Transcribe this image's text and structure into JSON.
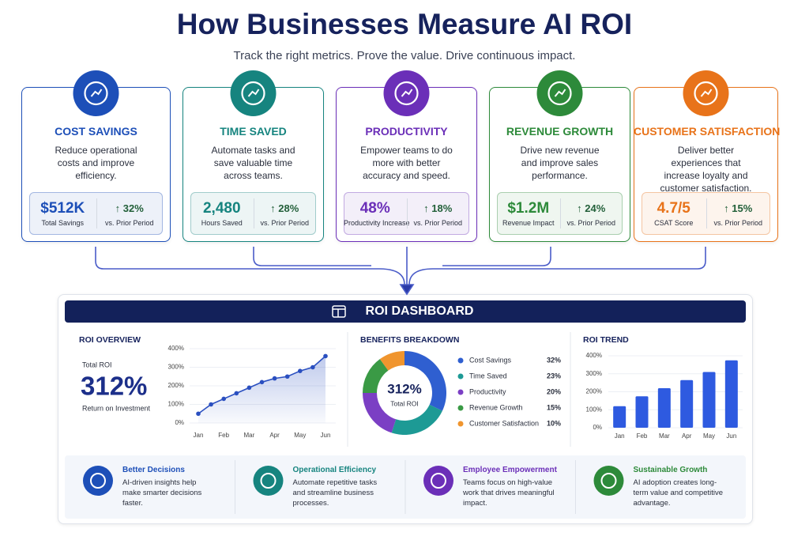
{
  "header": {
    "title": "How Businesses Measure AI ROI",
    "subtitle": "Track the right metrics. Prove the value. Drive continuous impact."
  },
  "cards": [
    {
      "title": "COST SAVINGS",
      "color": "#1d4fb8",
      "description": "Reduce operational costs and improve efficiency.",
      "metric": "$512K",
      "metric_label": "Total Savings",
      "change": "↑ 32%",
      "change_label": "vs. Prior Period"
    },
    {
      "title": "TIME SAVED",
      "color": "#16847f",
      "description": "Automate tasks and save valuable time across teams.",
      "metric": "2,480",
      "metric_label": "Hours Saved",
      "change": "↑ 28%",
      "change_label": "vs. Prior Period"
    },
    {
      "title": "PRODUCTIVITY",
      "color": "#6b2fb8",
      "description": "Empower teams to do more with better accuracy and speed.",
      "metric": "48%",
      "metric_label": "Productivity Increase",
      "change": "↑ 18%",
      "change_label": "vs. Prior Period"
    },
    {
      "title": "REVENUE GROWTH",
      "color": "#2d8a3a",
      "description": "Drive new revenue and improve sales performance.",
      "metric": "$1.2M",
      "metric_label": "Revenue Impact",
      "change": "↑ 24%",
      "change_label": "vs. Prior Period"
    },
    {
      "title": "CUSTOMER SATISFACTION",
      "color": "#e8731a",
      "description": "Deliver better experiences that increase loyalty and customer satisfaction.",
      "metric": "4.7/5",
      "metric_label": "CSAT Score",
      "change": "↑ 15%",
      "change_label": "vs. Prior Period"
    }
  ],
  "dashboard": {
    "title": "ROI DASHBOARD"
  },
  "chart_data": [
    {
      "type": "line",
      "title": "ROI OVERVIEW",
      "kpi_label": "Total ROI",
      "kpi_value": "312%",
      "kpi_caption": "Return on Investment",
      "categories": [
        "Jan",
        null,
        "Feb",
        null,
        "Mar",
        null,
        "Apr",
        null,
        "May",
        null,
        "Jun"
      ],
      "values": [
        50,
        100,
        130,
        160,
        190,
        220,
        240,
        250,
        280,
        300,
        360
      ],
      "color": "#2a4fc0",
      "ylim": [
        0,
        400
      ],
      "yticks": [
        {
          "value": 0,
          "label": "0%"
        },
        {
          "value": 100,
          "label": "100%"
        },
        {
          "value": 200,
          "label": "200%"
        },
        {
          "value": 300,
          "label": "300%"
        },
        {
          "value": 400,
          "label": "400%"
        }
      ]
    },
    {
      "type": "pie",
      "title": "BENEFITS BREAKDOWN",
      "center_value": "312%",
      "center_label": "Total ROI",
      "categories": [
        "Cost Savings",
        "Time Saved",
        "Productivity",
        "Revenue Growth",
        "Customer Satisfaction"
      ],
      "values": [
        32,
        23,
        20,
        15,
        10
      ],
      "value_labels": [
        "32%",
        "23%",
        "20%",
        "15%",
        "10%"
      ],
      "colors": [
        "#2f5fd0",
        "#1d9a95",
        "#7b3fc4",
        "#3a9a45",
        "#f0952e"
      ]
    },
    {
      "type": "bar",
      "title": "ROI TREND",
      "categories": [
        "Jan",
        "Feb",
        "Mar",
        "Apr",
        "May",
        "Jun"
      ],
      "values": [
        120,
        175,
        220,
        265,
        310,
        375
      ],
      "color": "#2e5ae0",
      "ylim": [
        0,
        400
      ],
      "yticks": [
        {
          "value": 0,
          "label": "0%"
        },
        {
          "value": 100,
          "label": "100%"
        },
        {
          "value": 200,
          "label": "200%"
        },
        {
          "value": 300,
          "label": "300%"
        },
        {
          "value": 400,
          "label": "400%"
        }
      ]
    }
  ],
  "benefits": [
    {
      "title": "Better Decisions",
      "text": "AI-driven insights help make smarter decisions faster.",
      "color": "#1d4fb8"
    },
    {
      "title": "Operational Efficiency",
      "text": "Automate repetitive tasks and streamline business processes.",
      "color": "#16847f"
    },
    {
      "title": "Employee Empowerment",
      "text": "Teams focus on high-value work that drives meaningful impact.",
      "color": "#6b2fb8"
    },
    {
      "title": "Sustainable Growth",
      "text": "AI adoption creates long-term value and competitive advantage.",
      "color": "#2d8a3a"
    }
  ]
}
